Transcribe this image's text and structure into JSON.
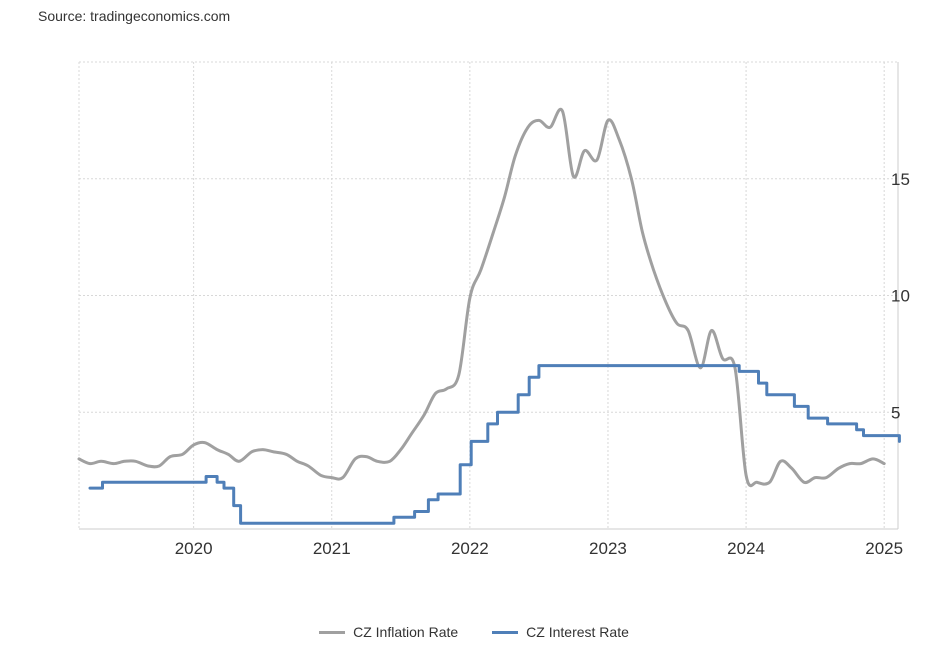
{
  "source": "Source: tradingeconomics.com",
  "chart_data": {
    "type": "line",
    "x_axis": {
      "type": "time",
      "range": [
        2019.17,
        2025.1
      ],
      "ticks": [
        2020,
        2021,
        2022,
        2023,
        2024,
        2025
      ],
      "tick_labels": [
        "2020",
        "2021",
        "2022",
        "2023",
        "2024",
        "2025"
      ]
    },
    "y_axis": {
      "position": "right",
      "range": [
        0,
        20
      ],
      "ticks": [
        5,
        10,
        15
      ],
      "tick_labels": [
        "5",
        "10",
        "15"
      ]
    },
    "grid": true,
    "legend": "bottom-center",
    "series": [
      {
        "name": "CZ Inflation Rate",
        "color": "#a0a0a0",
        "interpolation": "smooth",
        "x": [
          2019.17,
          2019.25,
          2019.33,
          2019.42,
          2019.5,
          2019.58,
          2019.67,
          2019.75,
          2019.83,
          2019.92,
          2020.0,
          2020.08,
          2020.17,
          2020.25,
          2020.33,
          2020.42,
          2020.5,
          2020.58,
          2020.67,
          2020.75,
          2020.83,
          2020.92,
          2021.0,
          2021.08,
          2021.17,
          2021.25,
          2021.33,
          2021.42,
          2021.5,
          2021.58,
          2021.67,
          2021.75,
          2021.83,
          2021.92,
          2022.0,
          2022.08,
          2022.17,
          2022.25,
          2022.33,
          2022.42,
          2022.5,
          2022.58,
          2022.67,
          2022.75,
          2022.83,
          2022.92,
          2023.0,
          2023.08,
          2023.17,
          2023.25,
          2023.33,
          2023.42,
          2023.5,
          2023.58,
          2023.67,
          2023.75,
          2023.83,
          2023.92,
          2024.0,
          2024.08,
          2024.17,
          2024.25,
          2024.33,
          2024.42,
          2024.5,
          2024.58,
          2024.67,
          2024.75,
          2024.83,
          2024.92,
          2025.0
        ],
        "values": [
          3.0,
          2.8,
          2.9,
          2.8,
          2.9,
          2.9,
          2.7,
          2.7,
          3.1,
          3.2,
          3.6,
          3.7,
          3.4,
          3.2,
          2.9,
          3.3,
          3.4,
          3.3,
          3.2,
          2.9,
          2.7,
          2.3,
          2.2,
          2.2,
          3.0,
          3.1,
          2.9,
          2.9,
          3.4,
          4.1,
          4.9,
          5.8,
          6.0,
          6.6,
          9.9,
          11.1,
          12.7,
          14.2,
          16.0,
          17.2,
          17.5,
          17.2,
          17.9,
          15.1,
          16.2,
          15.8,
          17.5,
          16.7,
          15.0,
          12.7,
          11.1,
          9.7,
          8.8,
          8.5,
          6.9,
          8.5,
          7.3,
          6.9,
          2.3,
          2.0,
          2.0,
          2.9,
          2.6,
          2.0,
          2.2,
          2.2,
          2.6,
          2.8,
          2.8,
          3.0,
          2.8
        ]
      },
      {
        "name": "CZ Interest Rate",
        "color": "#4f7fb8",
        "interpolation": "step",
        "x": [
          2019.25,
          2019.34,
          2020.09,
          2020.17,
          2020.22,
          2020.29,
          2020.34,
          2021.33,
          2021.45,
          2021.55,
          2021.6,
          2021.7,
          2021.77,
          2021.87,
          2021.93,
          2022.01,
          2022.13,
          2022.2,
          2022.35,
          2022.43,
          2022.5,
          2023.85,
          2023.95,
          2024.09,
          2024.15,
          2024.35,
          2024.45,
          2024.59,
          2024.8,
          2024.85,
          2025.09,
          2025.11
        ],
        "values": [
          1.75,
          2.0,
          2.25,
          2.0,
          1.75,
          1.0,
          0.25,
          0.25,
          0.5,
          0.5,
          0.75,
          1.25,
          1.5,
          1.5,
          2.75,
          3.75,
          4.5,
          5.0,
          5.75,
          6.5,
          7.0,
          7.0,
          6.75,
          6.25,
          5.75,
          5.25,
          4.75,
          4.5,
          4.25,
          4.0,
          4.0,
          3.75
        ]
      }
    ]
  }
}
